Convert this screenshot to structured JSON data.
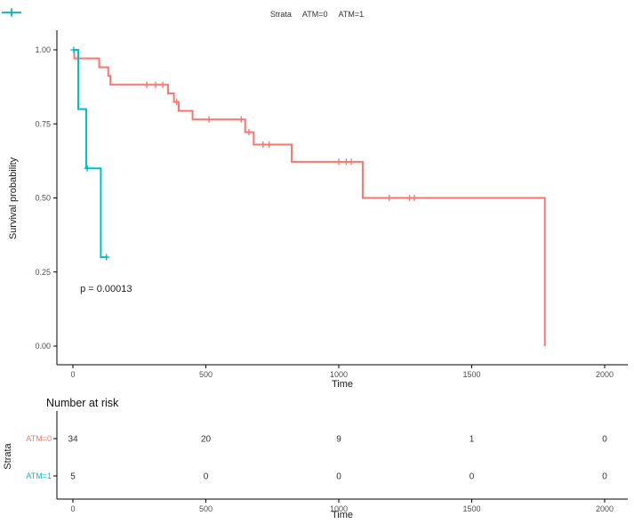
{
  "figure": {
    "legend": {
      "title": "Strata"
    },
    "background": "#ffffff",
    "axis_line_color": "#000000",
    "tick_label_color": "#4d4d4d"
  },
  "chart_data": {
    "type": "line",
    "subtype": "kaplan_meier_step_survival",
    "title": "",
    "xlabel": "Time",
    "ylabel": "Survival probability",
    "xlim": [
      0,
      2000
    ],
    "ylim": [
      0,
      1
    ],
    "grid": false,
    "legend_position": "top",
    "x_ticks": {
      "values": [
        0,
        500,
        1000,
        1500,
        2000
      ],
      "labels": [
        "0",
        "500",
        "1000",
        "1500",
        "2000"
      ]
    },
    "y_ticks": {
      "values": [
        0,
        0.25,
        0.5,
        0.75,
        1
      ],
      "labels": [
        "0.00",
        "0.25",
        "0.50",
        "0.75",
        "1.00"
      ]
    },
    "annotation": {
      "text": "p = 0.00013",
      "t": 27,
      "s": 0.19
    },
    "series": [
      {
        "name": "ATM=0",
        "color": "#F8766D",
        "steps": [
          [
            0,
            1.0
          ],
          [
            5,
            0.971
          ],
          [
            99,
            0.941
          ],
          [
            133,
            0.912
          ],
          [
            141,
            0.882
          ],
          [
            358,
            0.853
          ],
          [
            380,
            0.824
          ],
          [
            398,
            0.794
          ],
          [
            450,
            0.765
          ],
          [
            648,
            0.722
          ],
          [
            680,
            0.68
          ],
          [
            823,
            0.622
          ],
          [
            1090,
            0.5
          ],
          [
            1775,
            0.0
          ]
        ],
        "end_time": 1775,
        "censors": [
          [
            278,
            0.882
          ],
          [
            311,
            0.882
          ],
          [
            338,
            0.882
          ],
          [
            390,
            0.824
          ],
          [
            512,
            0.765
          ],
          [
            633,
            0.765
          ],
          [
            662,
            0.722
          ],
          [
            715,
            0.68
          ],
          [
            738,
            0.68
          ],
          [
            1000,
            0.622
          ],
          [
            1028,
            0.622
          ],
          [
            1047,
            0.622
          ],
          [
            1190,
            0.5
          ],
          [
            1266,
            0.5
          ],
          [
            1284,
            0.5
          ]
        ]
      },
      {
        "name": "ATM=1",
        "color": "#00BFC4",
        "steps": [
          [
            0,
            1.0
          ],
          [
            20,
            0.8
          ],
          [
            50,
            0.6
          ],
          [
            105,
            0.3
          ]
        ],
        "end_time": 130,
        "censors": [
          [
            3,
            1.0
          ],
          [
            54,
            0.6
          ],
          [
            126,
            0.3
          ]
        ]
      }
    ],
    "risk_table": {
      "title": "Number at risk",
      "ylabel": "Strata",
      "xlabel": "Time",
      "times": [
        0,
        500,
        1000,
        1500,
        2000
      ],
      "rows": [
        {
          "label": "ATM=0",
          "color": "#F8766D",
          "counts": [
            "34",
            "20",
            "9",
            "1",
            "0"
          ]
        },
        {
          "label": "ATM=1",
          "color": "#00BFC4",
          "counts": [
            "5",
            "0",
            "0",
            "0",
            "0"
          ]
        }
      ]
    }
  }
}
